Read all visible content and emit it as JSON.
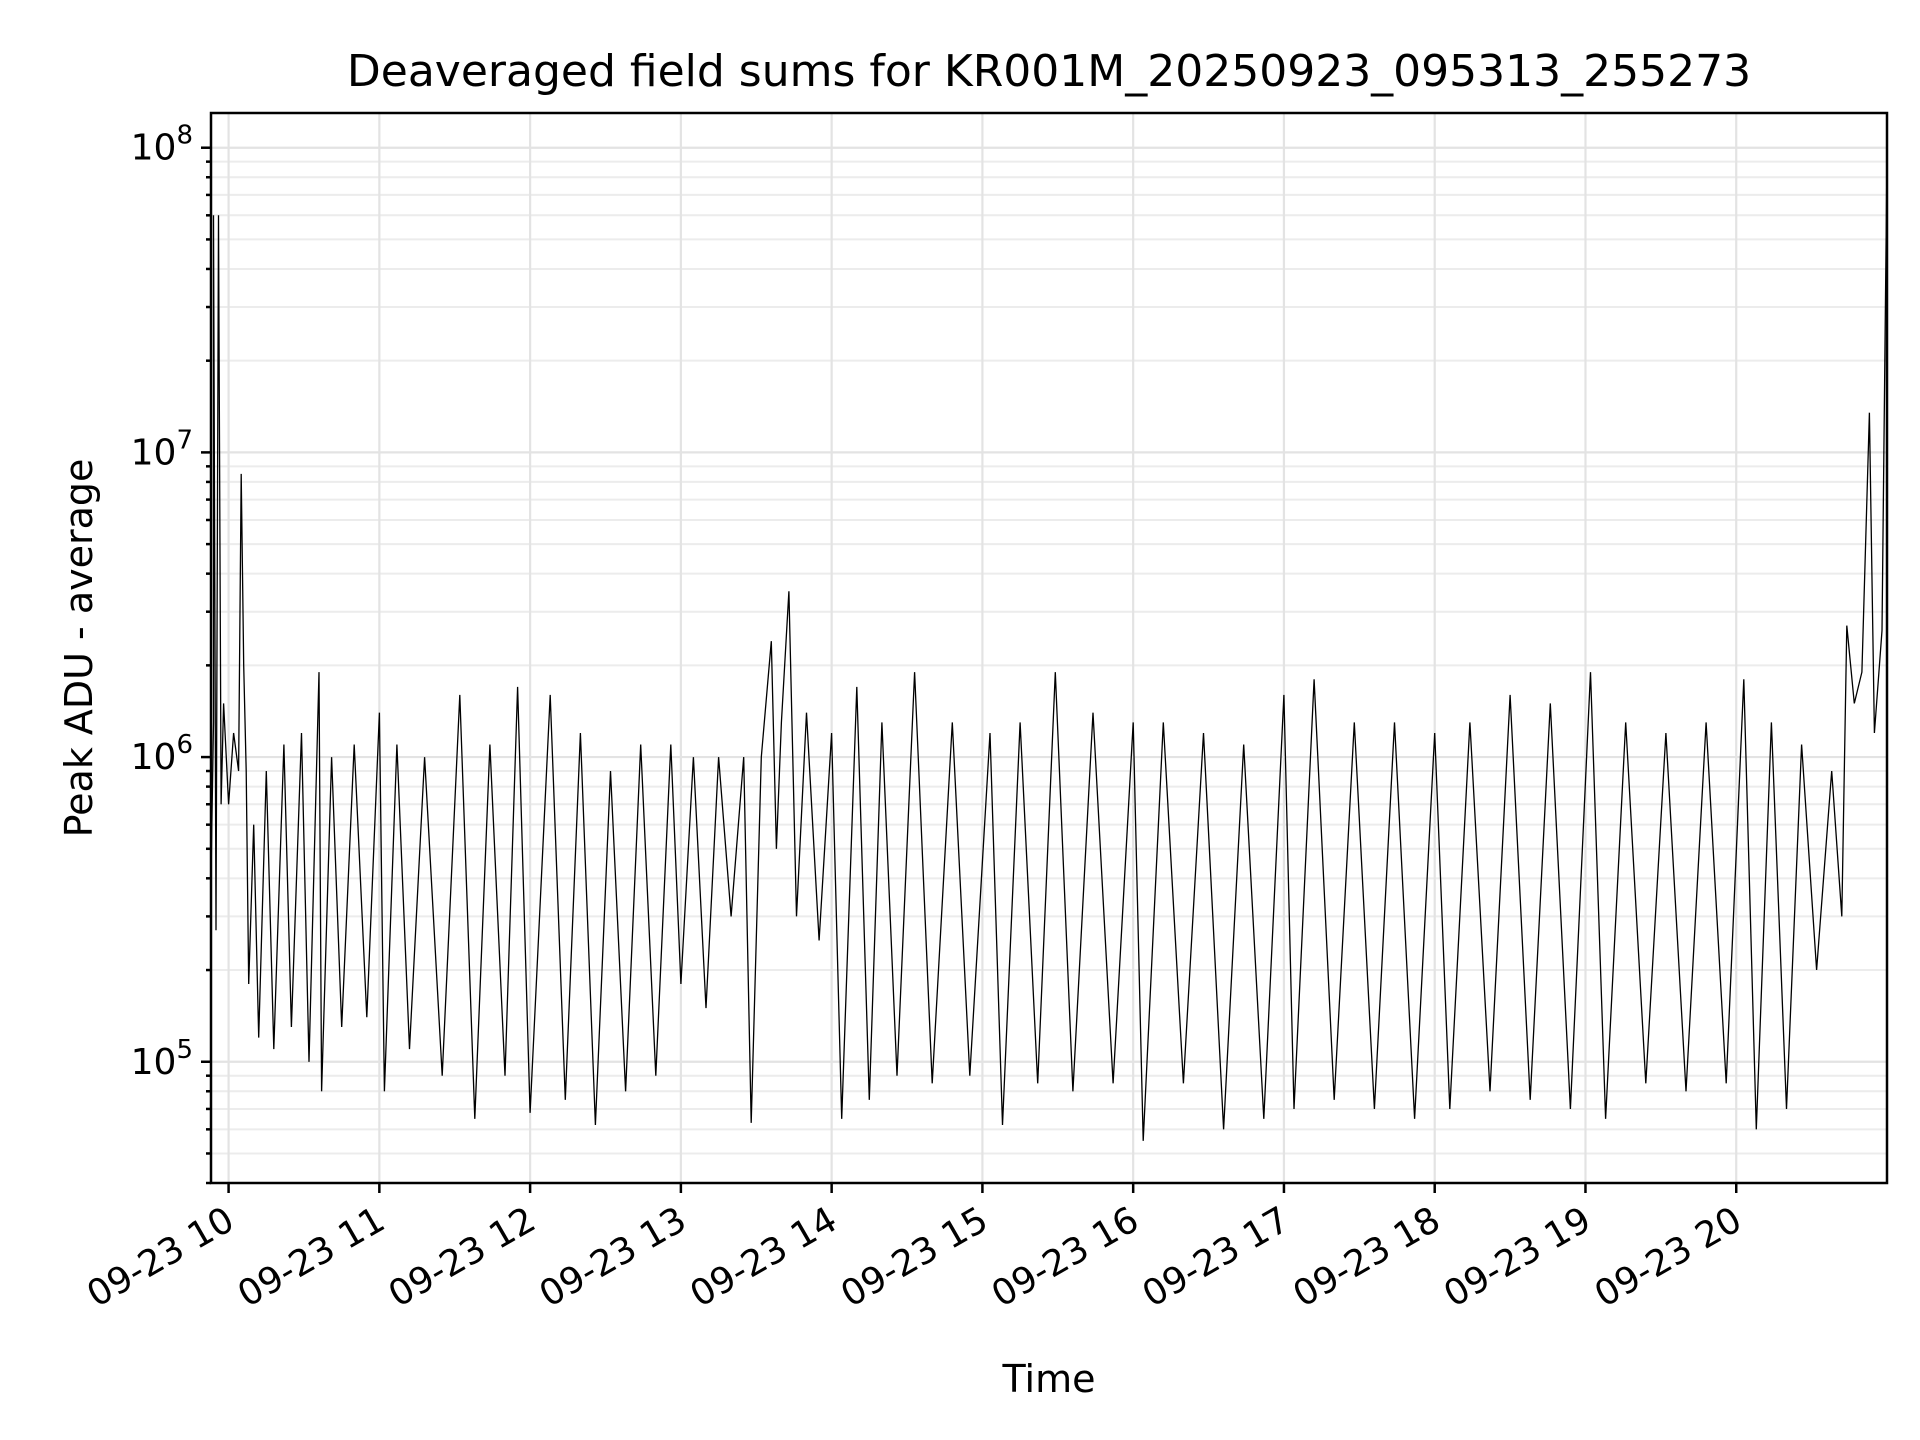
{
  "chart_data": {
    "type": "line",
    "title": "Deaveraged field sums for KR001M_20250923_095313_255273",
    "xlabel": "Time",
    "ylabel": "Peak ADU - average",
    "yscale": "log",
    "ylim": [
      40000,
      130000000
    ],
    "xlim": [
      "2025-09-23 09:53",
      "2025-09-23 21:00"
    ],
    "grid": true,
    "x_ticks": [
      {
        "time": "2025-09-23 10:00",
        "label": "09-23 10"
      },
      {
        "time": "2025-09-23 11:00",
        "label": "09-23 11"
      },
      {
        "time": "2025-09-23 12:00",
        "label": "09-23 12"
      },
      {
        "time": "2025-09-23 13:00",
        "label": "09-23 13"
      },
      {
        "time": "2025-09-23 14:00",
        "label": "09-23 14"
      },
      {
        "time": "2025-09-23 15:00",
        "label": "09-23 15"
      },
      {
        "time": "2025-09-23 16:00",
        "label": "09-23 16"
      },
      {
        "time": "2025-09-23 17:00",
        "label": "09-23 17"
      },
      {
        "time": "2025-09-23 18:00",
        "label": "09-23 18"
      },
      {
        "time": "2025-09-23 19:00",
        "label": "09-23 19"
      },
      {
        "time": "2025-09-23 20:00",
        "label": "09-23 20"
      }
    ],
    "y_ticks": [
      {
        "value": 100000,
        "base": "10",
        "exp": "5"
      },
      {
        "value": 1000000,
        "base": "10",
        "exp": "6"
      },
      {
        "value": 10000000,
        "base": "10",
        "exp": "7"
      },
      {
        "value": 100000000,
        "base": "10",
        "exp": "8"
      }
    ],
    "series": [
      {
        "color": "#000000",
        "points": [
          [
            "2025-09-23 09:53",
            400000
          ],
          [
            "2025-09-23 09:54",
            1300000
          ],
          [
            "2025-09-23 09:54",
            60000000
          ],
          [
            "2025-09-23 09:55",
            270000
          ],
          [
            "2025-09-23 09:56",
            60000000
          ],
          [
            "2025-09-23 09:57",
            700000
          ],
          [
            "2025-09-23 09:58",
            1500000
          ],
          [
            "2025-09-23 10:00",
            700000
          ],
          [
            "2025-09-23 10:02",
            1200000
          ],
          [
            "2025-09-23 10:04",
            900000
          ],
          [
            "2025-09-23 10:05",
            8500000
          ],
          [
            "2025-09-23 10:06",
            2000000
          ],
          [
            "2025-09-23 10:07",
            900000
          ],
          [
            "2025-09-23 10:08",
            180000
          ],
          [
            "2025-09-23 10:10",
            600000
          ],
          [
            "2025-09-23 10:12",
            120000
          ],
          [
            "2025-09-23 10:15",
            900000
          ],
          [
            "2025-09-23 10:18",
            110000
          ],
          [
            "2025-09-23 10:22",
            1100000
          ],
          [
            "2025-09-23 10:25",
            130000
          ],
          [
            "2025-09-23 10:29",
            1200000
          ],
          [
            "2025-09-23 10:32",
            100000
          ],
          [
            "2025-09-23 10:36",
            1900000
          ],
          [
            "2025-09-23 10:37",
            80000
          ],
          [
            "2025-09-23 10:41",
            1000000
          ],
          [
            "2025-09-23 10:45",
            130000
          ],
          [
            "2025-09-23 10:50",
            1100000
          ],
          [
            "2025-09-23 10:55",
            140000
          ],
          [
            "2025-09-23 11:00",
            1400000
          ],
          [
            "2025-09-23 11:02",
            80000
          ],
          [
            "2025-09-23 11:07",
            1100000
          ],
          [
            "2025-09-23 11:12",
            110000
          ],
          [
            "2025-09-23 11:18",
            1000000
          ],
          [
            "2025-09-23 11:25",
            90000
          ],
          [
            "2025-09-23 11:32",
            1600000
          ],
          [
            "2025-09-23 11:38",
            65000
          ],
          [
            "2025-09-23 11:44",
            1100000
          ],
          [
            "2025-09-23 11:50",
            90000
          ],
          [
            "2025-09-23 11:55",
            1700000
          ],
          [
            "2025-09-23 12:00",
            68000
          ],
          [
            "2025-09-23 12:08",
            1600000
          ],
          [
            "2025-09-23 12:14",
            75000
          ],
          [
            "2025-09-23 12:20",
            1200000
          ],
          [
            "2025-09-23 12:26",
            62000
          ],
          [
            "2025-09-23 12:32",
            900000
          ],
          [
            "2025-09-23 12:38",
            80000
          ],
          [
            "2025-09-23 12:44",
            1100000
          ],
          [
            "2025-09-23 12:50",
            90000
          ],
          [
            "2025-09-23 12:56",
            1100000
          ],
          [
            "2025-09-23 13:00",
            180000
          ],
          [
            "2025-09-23 13:05",
            1000000
          ],
          [
            "2025-09-23 13:10",
            150000
          ],
          [
            "2025-09-23 13:15",
            1000000
          ],
          [
            "2025-09-23 13:20",
            300000
          ],
          [
            "2025-09-23 13:25",
            1000000
          ],
          [
            "2025-09-23 13:28",
            63000
          ],
          [
            "2025-09-23 13:32",
            1000000
          ],
          [
            "2025-09-23 13:36",
            2400000
          ],
          [
            "2025-09-23 13:38",
            500000
          ],
          [
            "2025-09-23 13:40",
            1300000
          ],
          [
            "2025-09-23 13:43",
            3500000
          ],
          [
            "2025-09-23 13:46",
            300000
          ],
          [
            "2025-09-23 13:50",
            1400000
          ],
          [
            "2025-09-23 13:55",
            250000
          ],
          [
            "2025-09-23 14:00",
            1200000
          ],
          [
            "2025-09-23 14:04",
            65000
          ],
          [
            "2025-09-23 14:10",
            1700000
          ],
          [
            "2025-09-23 14:15",
            75000
          ],
          [
            "2025-09-23 14:20",
            1300000
          ],
          [
            "2025-09-23 14:26",
            90000
          ],
          [
            "2025-09-23 14:33",
            1900000
          ],
          [
            "2025-09-23 14:40",
            85000
          ],
          [
            "2025-09-23 14:48",
            1300000
          ],
          [
            "2025-09-23 14:55",
            90000
          ],
          [
            "2025-09-23 15:03",
            1200000
          ],
          [
            "2025-09-23 15:08",
            62000
          ],
          [
            "2025-09-23 15:15",
            1300000
          ],
          [
            "2025-09-23 15:22",
            85000
          ],
          [
            "2025-09-23 15:29",
            1900000
          ],
          [
            "2025-09-23 15:36",
            80000
          ],
          [
            "2025-09-23 15:44",
            1400000
          ],
          [
            "2025-09-23 15:52",
            85000
          ],
          [
            "2025-09-23 16:00",
            1300000
          ],
          [
            "2025-09-23 16:04",
            55000
          ],
          [
            "2025-09-23 16:12",
            1300000
          ],
          [
            "2025-09-23 16:20",
            85000
          ],
          [
            "2025-09-23 16:28",
            1200000
          ],
          [
            "2025-09-23 16:36",
            60000
          ],
          [
            "2025-09-23 16:44",
            1100000
          ],
          [
            "2025-09-23 16:52",
            65000
          ],
          [
            "2025-09-23 17:00",
            1600000
          ],
          [
            "2025-09-23 17:04",
            70000
          ],
          [
            "2025-09-23 17:12",
            1800000
          ],
          [
            "2025-09-23 17:20",
            75000
          ],
          [
            "2025-09-23 17:28",
            1300000
          ],
          [
            "2025-09-23 17:36",
            70000
          ],
          [
            "2025-09-23 17:44",
            1300000
          ],
          [
            "2025-09-23 17:52",
            65000
          ],
          [
            "2025-09-23 18:00",
            1200000
          ],
          [
            "2025-09-23 18:06",
            70000
          ],
          [
            "2025-09-23 18:14",
            1300000
          ],
          [
            "2025-09-23 18:22",
            80000
          ],
          [
            "2025-09-23 18:30",
            1600000
          ],
          [
            "2025-09-23 18:38",
            75000
          ],
          [
            "2025-09-23 18:46",
            1500000
          ],
          [
            "2025-09-23 18:54",
            70000
          ],
          [
            "2025-09-23 19:02",
            1900000
          ],
          [
            "2025-09-23 19:08",
            65000
          ],
          [
            "2025-09-23 19:16",
            1300000
          ],
          [
            "2025-09-23 19:24",
            85000
          ],
          [
            "2025-09-23 19:32",
            1200000
          ],
          [
            "2025-09-23 19:40",
            80000
          ],
          [
            "2025-09-23 19:48",
            1300000
          ],
          [
            "2025-09-23 19:56",
            85000
          ],
          [
            "2025-09-23 20:03",
            1800000
          ],
          [
            "2025-09-23 20:08",
            60000
          ],
          [
            "2025-09-23 20:14",
            1300000
          ],
          [
            "2025-09-23 20:20",
            70000
          ],
          [
            "2025-09-23 20:26",
            1100000
          ],
          [
            "2025-09-23 20:32",
            200000
          ],
          [
            "2025-09-23 20:38",
            900000
          ],
          [
            "2025-09-23 20:42",
            300000
          ],
          [
            "2025-09-23 20:44",
            2700000
          ],
          [
            "2025-09-23 20:47",
            1500000
          ],
          [
            "2025-09-23 20:50",
            1900000
          ],
          [
            "2025-09-23 20:53",
            13500000
          ],
          [
            "2025-09-23 20:55",
            1200000
          ],
          [
            "2025-09-23 20:58",
            2600000
          ],
          [
            "2025-09-23 21:00",
            95000000
          ]
        ]
      }
    ]
  }
}
